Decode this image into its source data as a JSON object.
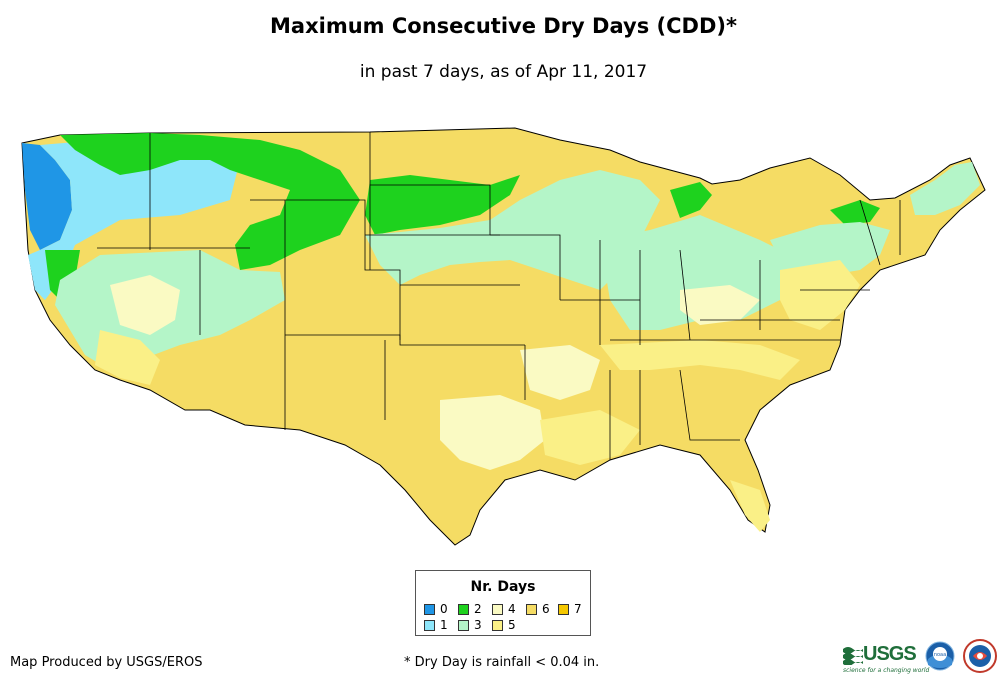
{
  "title": "Maximum Consecutive Dry Days (CDD)*",
  "subtitle": "in past 7 days, as of Apr 11, 2017",
  "legend": {
    "title": "Nr. Days",
    "items": [
      {
        "label": "0",
        "color": "#1f96e6"
      },
      {
        "label": "1",
        "color": "#8ee6fa"
      },
      {
        "label": "2",
        "color": "#1ed21e"
      },
      {
        "label": "3",
        "color": "#b4f5c8"
      },
      {
        "label": "4",
        "color": "#fafac3"
      },
      {
        "label": "5",
        "color": "#faf087"
      },
      {
        "label": "6",
        "color": "#f5dc64"
      },
      {
        "label": "7",
        "color": "#f5c800"
      }
    ]
  },
  "credit": "Map Produced by USGS/EROS",
  "footnote": "* Dry Day is rainfall < 0.04 in.",
  "logos": {
    "usgs": "USGS",
    "usgs_tagline": "science for a changing world",
    "noaa": "noaa",
    "nws": "national-weather-service-logo"
  }
}
